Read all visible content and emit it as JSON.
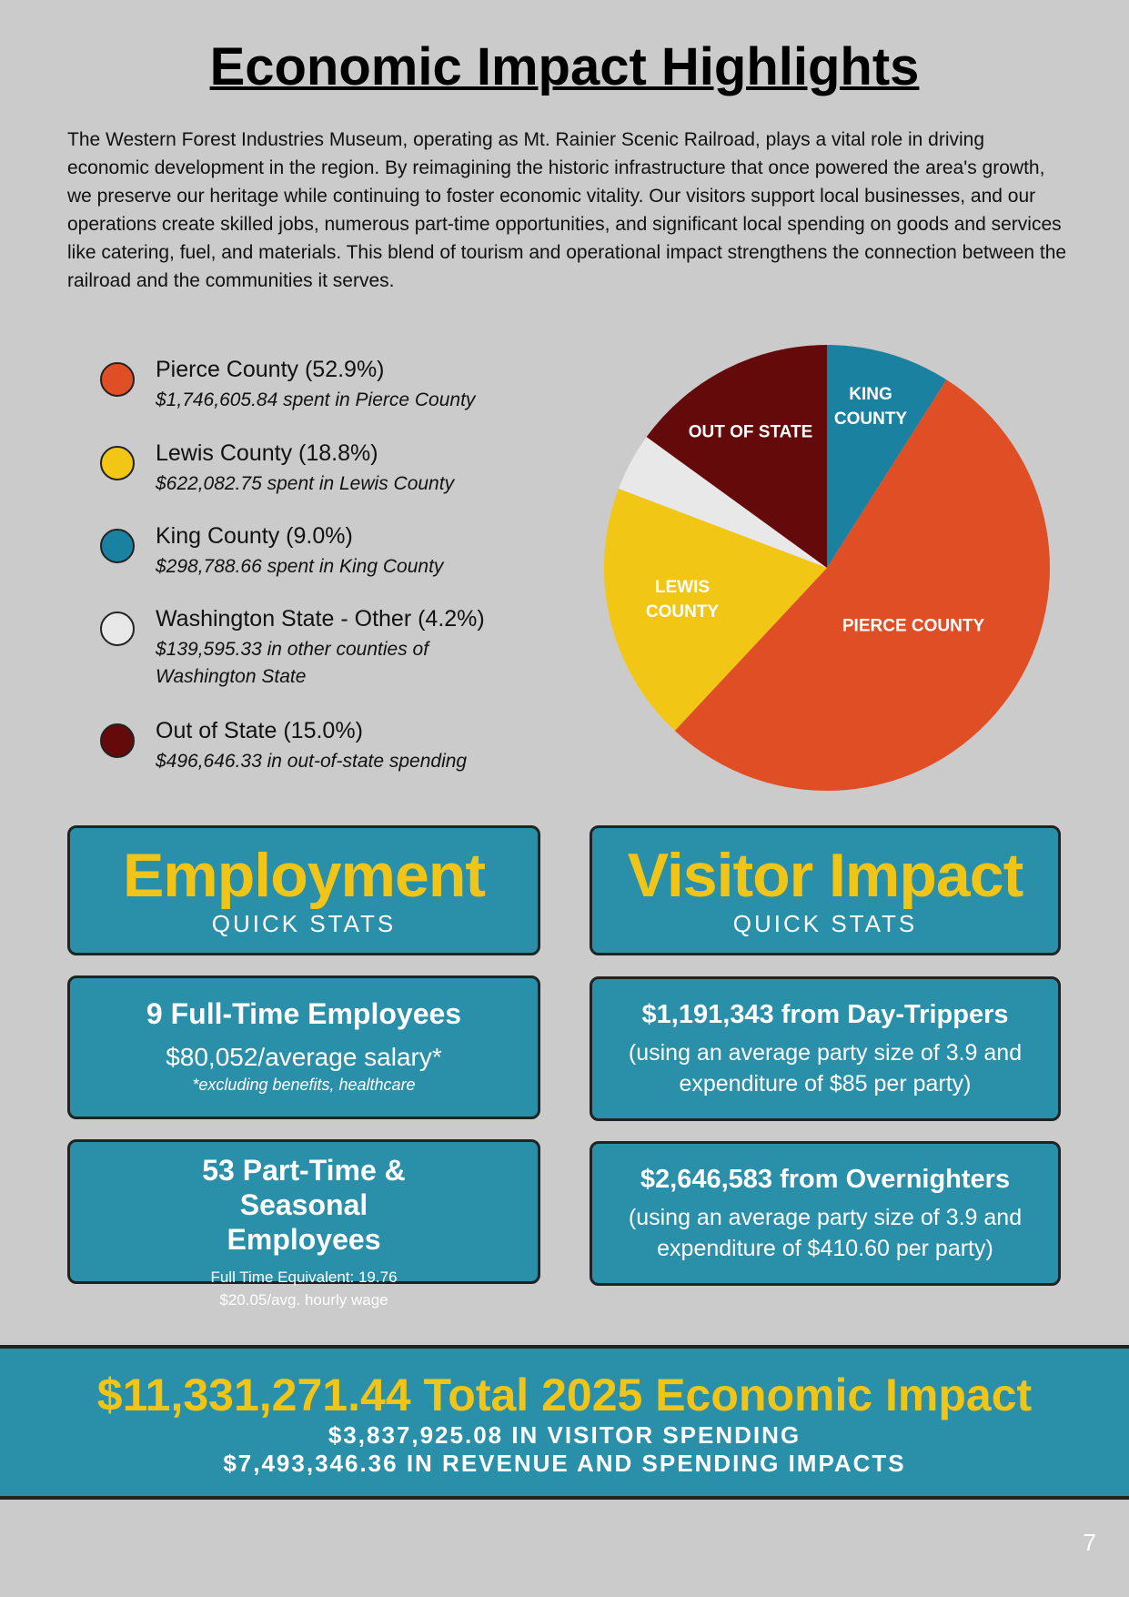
{
  "header": {
    "title": "Economic Impact Highlights",
    "intro": "The Western Forest Industries Museum, operating as Mt. Rainier Scenic Railroad, plays a vital role in driving economic development in the region. By reimagining the historic infrastructure that once powered the area's growth, we preserve our heritage while continuing to foster economic vitality. Our visitors support local businesses, and our operations create skilled jobs, numerous part-time opportunities, and significant local spending on goods and services like catering, fuel, and materials. This blend of tourism and operational impact strengthens the connection between the railroad and the communities it serves."
  },
  "chart_data": {
    "type": "pie",
    "categories": [
      "Pierce County (52.9%)",
      "Lewis County (18.8%)",
      "King County (9.0%)",
      "Washington State - Other (4.2%)",
      "Out of State (15.0%)"
    ],
    "values": [
      52.9,
      18.8,
      9.0,
      4.2,
      15.0
    ],
    "colors": [
      "#e04e26",
      "#f2c614",
      "#1a82a0",
      "#e8e8e8",
      "#650a0b"
    ],
    "details": [
      "$1,746,605.84 spent in Pierce County",
      "$622,082.75 spent in Lewis County",
      "$298,788.66 spent in King County",
      "$139,595.33 in other counties of Washington State",
      "$496,646.33 in out-of-state spending"
    ],
    "slice_labels": [
      "PIERCE COUNTY",
      "LEWIS COUNTY",
      "KING COUNTY",
      null,
      "OUT OF STATE"
    ]
  },
  "employment": {
    "title": "Employment",
    "subtitle": "QUICK STATS",
    "cards": [
      {
        "heading": "9 Full-Time Employees",
        "lines": [
          "$80,052/average salary*",
          "*excluding benefits, healthcare"
        ]
      },
      {
        "heading": "53 Part-Time & Seasonal Employees",
        "lines": [
          "Full Time Equivalent: 19.76",
          "$20.05/avg. hourly wage"
        ]
      }
    ]
  },
  "visitor": {
    "title": "Visitor Impact",
    "subtitle": "QUICK STATS",
    "cards": [
      {
        "heading": "$1,191,343 from Day-Trippers",
        "lines": [
          "(using an average party size of 3.9 and expenditure of $85 per party)"
        ]
      },
      {
        "heading": "$2,646,583 from Overnighters",
        "lines": [
          "(using an average party size of 3.9 and expenditure of $410.60 per party)"
        ]
      }
    ]
  },
  "total": {
    "headline": "$11,331,271.44 Total 2025 Economic Impact",
    "lines": [
      "$3,837,925.08 IN VISITOR SPENDING",
      "$7,493,346.36 IN REVENUE AND SPENDING IMPACTS"
    ]
  },
  "page_number": "7"
}
